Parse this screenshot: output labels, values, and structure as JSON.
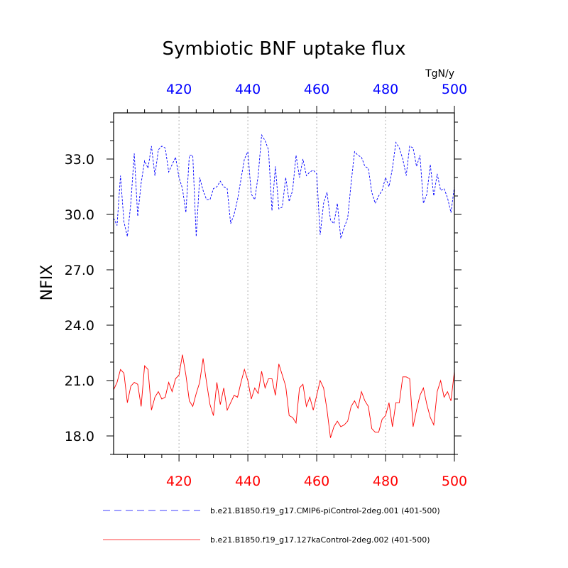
{
  "chart_data": {
    "type": "line",
    "title": "Symbiotic BNF uptake flux",
    "units": "TgN/y",
    "ylabel": "NFIX",
    "xlabel": "",
    "xlim": [
      401,
      500
    ],
    "ylim": [
      17.0,
      35.5
    ],
    "xticks": [
      420,
      440,
      460,
      480,
      500
    ],
    "xtick_labels": [
      "420",
      "440",
      "460",
      "480",
      "500"
    ],
    "yticks": [
      18.0,
      21.0,
      24.0,
      27.0,
      30.0,
      33.0
    ],
    "ytick_labels": [
      "18.0",
      "21.0",
      "24.0",
      "27.0",
      "30.0",
      "33.0"
    ],
    "top_axis_color": "#0000ff",
    "bottom_axis_color": "#ff0000",
    "grid": "vertical dotted at major x ticks",
    "series": [
      {
        "name": "b.e21.B1850.f19_g17.CMIP6-piControl-2deg.001 (401-500)",
        "color": "#0000ff",
        "dash": "dashed",
        "x": [
          401,
          402,
          403,
          404,
          405,
          406,
          407,
          408,
          409,
          410,
          411,
          412,
          413,
          414,
          415,
          416,
          417,
          418,
          419,
          420,
          421,
          422,
          423,
          424,
          425,
          426,
          427,
          428,
          429,
          430,
          431,
          432,
          433,
          434,
          435,
          436,
          437,
          438,
          439,
          440,
          441,
          442,
          443,
          444,
          445,
          446,
          447,
          448,
          449,
          450,
          451,
          452,
          453,
          454,
          455,
          456,
          457,
          458,
          459,
          460,
          461,
          462,
          463,
          464,
          465,
          466,
          467,
          468,
          469,
          470,
          471,
          472,
          473,
          474,
          475,
          476,
          477,
          478,
          479,
          480,
          481,
          482,
          483,
          484,
          485,
          486,
          487,
          488,
          489,
          490,
          491,
          492,
          493,
          494,
          495,
          496,
          497,
          498,
          499,
          500
        ],
        "values": [
          29.8,
          29.4,
          32.1,
          29.6,
          28.8,
          30.6,
          33.3,
          29.9,
          31.7,
          32.9,
          32.5,
          33.7,
          32.1,
          33.5,
          33.7,
          33.6,
          32.3,
          32.7,
          33.1,
          32.0,
          31.4,
          30.1,
          33.2,
          33.2,
          28.8,
          32.0,
          31.3,
          30.8,
          30.8,
          31.4,
          31.5,
          31.8,
          31.5,
          31.4,
          29.5,
          30.0,
          30.8,
          31.9,
          33.0,
          33.4,
          31.1,
          30.8,
          32.1,
          34.3,
          34.0,
          33.5,
          30.2,
          32.6,
          30.3,
          30.4,
          32.0,
          30.7,
          31.3,
          33.2,
          32.0,
          33.0,
          32.1,
          32.3,
          32.4,
          32.2,
          28.9,
          30.6,
          31.2,
          29.7,
          29.5,
          30.6,
          28.7,
          29.3,
          29.8,
          31.7,
          33.4,
          33.2,
          33.1,
          32.6,
          32.5,
          31.2,
          30.6,
          31.0,
          31.3,
          32.0,
          31.5,
          32.5,
          33.9,
          33.6,
          33.0,
          32.1,
          33.7,
          33.6,
          32.6,
          33.2,
          30.6,
          31.1,
          32.7,
          31.0,
          32.2,
          31.3,
          31.4,
          30.9,
          30.1,
          31.5
        ]
      },
      {
        "name": "b.e21.B1850.f19_g17.127kaControl-2deg.002 (401-500)",
        "color": "#ff0000",
        "dash": "solid",
        "x": [
          401,
          402,
          403,
          404,
          405,
          406,
          407,
          408,
          409,
          410,
          411,
          412,
          413,
          414,
          415,
          416,
          417,
          418,
          419,
          420,
          421,
          422,
          423,
          424,
          425,
          426,
          427,
          428,
          429,
          430,
          431,
          432,
          433,
          434,
          435,
          436,
          437,
          438,
          439,
          440,
          441,
          442,
          443,
          444,
          445,
          446,
          447,
          448,
          449,
          450,
          451,
          452,
          453,
          454,
          455,
          456,
          457,
          458,
          459,
          460,
          461,
          462,
          463,
          464,
          465,
          466,
          467,
          468,
          469,
          470,
          471,
          472,
          473,
          474,
          475,
          476,
          477,
          478,
          479,
          480,
          481,
          482,
          483,
          484,
          485,
          486,
          487,
          488,
          489,
          490,
          491,
          492,
          493,
          494,
          495,
          496,
          497,
          498,
          499,
          500
        ],
        "values": [
          20.5,
          20.9,
          21.6,
          21.4,
          19.8,
          20.7,
          20.9,
          20.8,
          19.6,
          21.8,
          21.6,
          19.4,
          20.1,
          20.4,
          20.0,
          20.1,
          20.9,
          20.4,
          21.1,
          21.3,
          22.4,
          21.3,
          19.9,
          19.6,
          20.3,
          20.9,
          22.2,
          20.9,
          19.7,
          19.1,
          20.9,
          19.7,
          20.6,
          19.4,
          19.8,
          20.2,
          20.1,
          20.9,
          21.6,
          21.0,
          20.0,
          20.6,
          20.3,
          21.5,
          20.6,
          21.1,
          21.1,
          20.2,
          21.9,
          21.3,
          20.7,
          19.1,
          19.0,
          18.7,
          20.6,
          20.8,
          19.6,
          20.1,
          19.4,
          20.2,
          21.0,
          20.6,
          19.4,
          17.9,
          18.5,
          18.8,
          18.5,
          18.6,
          18.8,
          19.6,
          19.9,
          19.5,
          20.4,
          19.9,
          19.6,
          18.4,
          18.2,
          18.2,
          18.9,
          19.1,
          19.8,
          18.5,
          19.8,
          19.8,
          21.2,
          21.2,
          21.1,
          18.5,
          19.4,
          20.2,
          20.6,
          19.7,
          19.0,
          18.6,
          20.4,
          21.0,
          20.1,
          20.4,
          19.9,
          21.5
        ]
      }
    ]
  }
}
